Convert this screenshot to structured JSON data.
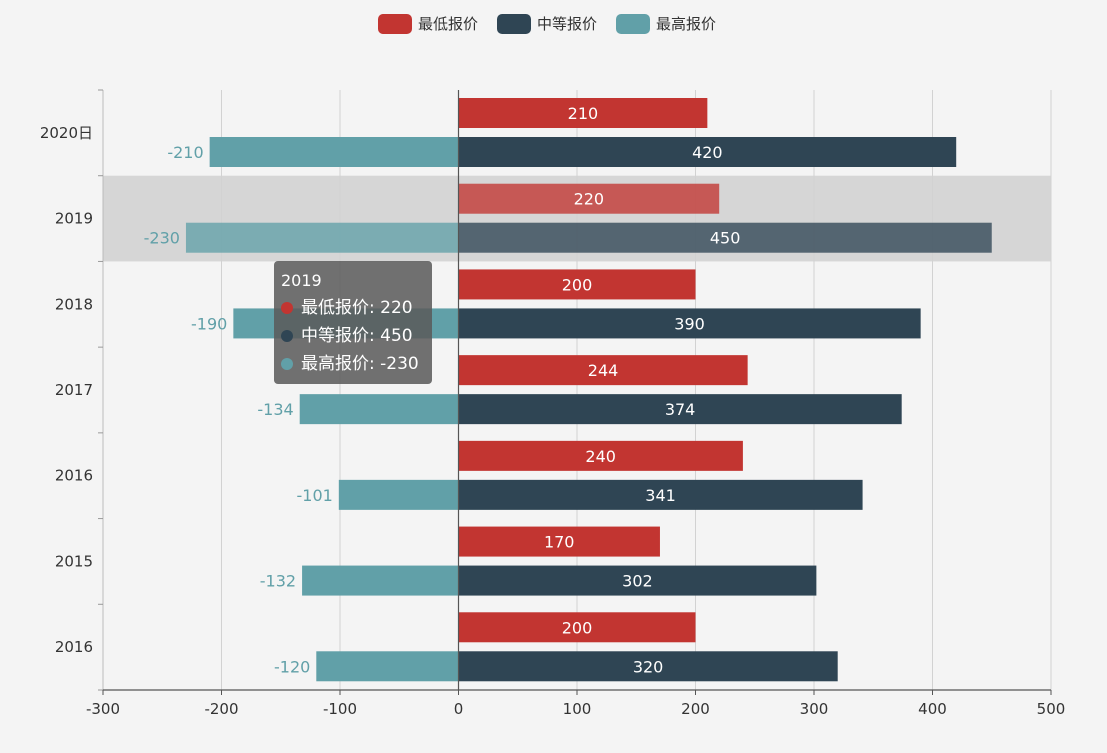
{
  "chart_data": {
    "type": "bar",
    "orientation": "horizontal",
    "stacked": false,
    "categories": [
      "2020日",
      "2019",
      "2018",
      "2017",
      "2016",
      "2015",
      "2016"
    ],
    "series": [
      {
        "name": "最低报价",
        "color": "#c23531",
        "values": [
          210,
          220,
          200,
          244,
          240,
          170,
          200
        ],
        "label_color": "#ffffff",
        "label_position": "inside"
      },
      {
        "name": "中等报价",
        "color": "#2f4554",
        "values": [
          420,
          450,
          390,
          374,
          341,
          302,
          320
        ],
        "label_color": "#ffffff",
        "label_position": "inside"
      },
      {
        "name": "最高报价",
        "color": "#61a0a8",
        "values": [
          -210,
          -230,
          -190,
          -134,
          -101,
          -132,
          -120
        ],
        "label_color": "#61a0a8",
        "label_position": "left"
      }
    ],
    "xlim": [
      -300,
      500
    ],
    "x_ticks": [
      -300,
      -200,
      -100,
      0,
      100,
      200,
      300,
      400,
      500
    ],
    "grid": {
      "vertical": true,
      "horizontal": false
    },
    "legend_position": "top-center",
    "highlighted_category_index": 1
  },
  "tooltip": {
    "title": "2019",
    "rows": [
      {
        "color": "#c23531",
        "text": "最低报价: 220"
      },
      {
        "color": "#2f4554",
        "text": "中等报价: 450"
      },
      {
        "color": "#61a0a8",
        "text": "最高报价: -230"
      }
    ]
  }
}
